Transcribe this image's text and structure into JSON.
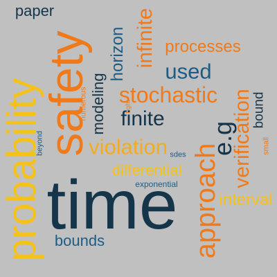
{
  "colors": {
    "background": "#c0c0c0",
    "dark": "#15354a",
    "teal": "#1d5c84",
    "orange": "#f07a1a",
    "amber": "#f2ac20",
    "yellow": "#f5c21a"
  },
  "words": {
    "paper": "paper",
    "safety": "safety",
    "probability": "probability",
    "time": "time",
    "approach": "approach",
    "infinite": "infinite",
    "processes": "processes",
    "used": "used",
    "horizon": "horizon",
    "stochastic": "stochastic",
    "modeling": "modeling",
    "finite": "finite",
    "numerous": "numerous",
    "tight": "tight",
    "eg": "e.g",
    "verification": "verification",
    "bound": "bound",
    "small": "small",
    "beyond": "beyond",
    "violation": "violation",
    "sdes": "sdes",
    "differential": "differential",
    "exponential": "exponential",
    "interval": "interval",
    "bounds": "bounds"
  }
}
